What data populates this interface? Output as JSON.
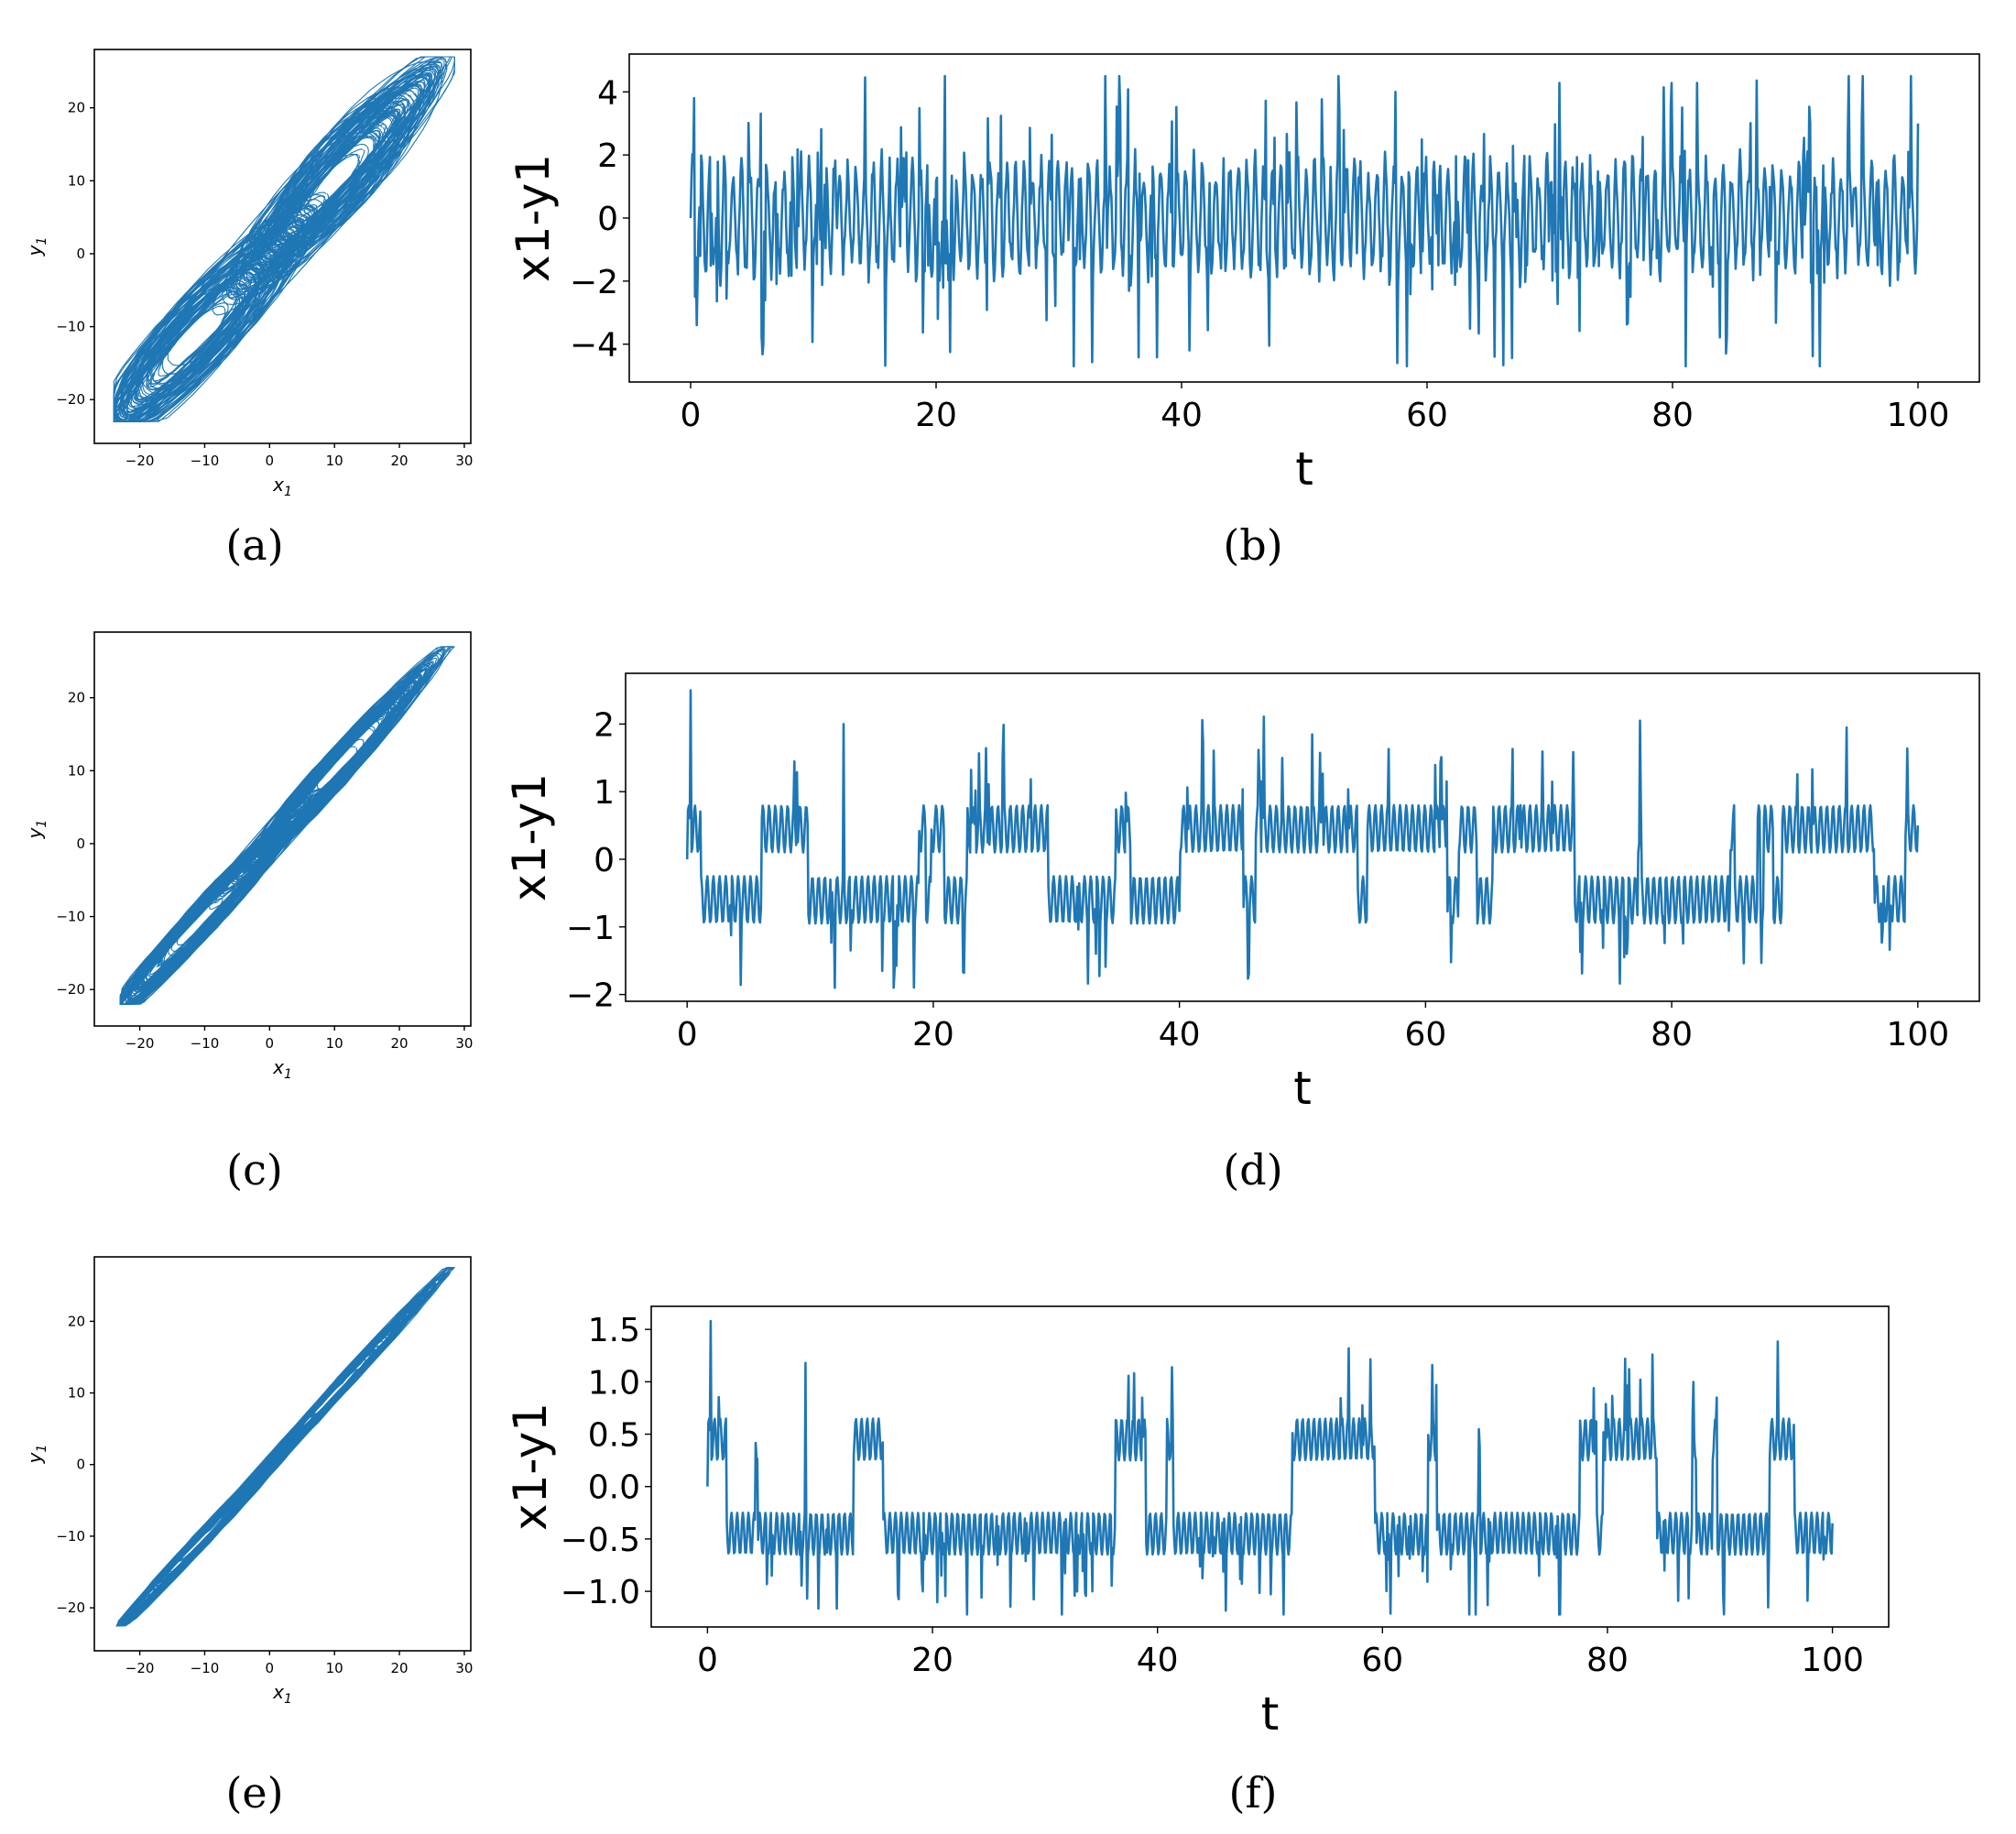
{
  "figure": {
    "line_color": "#1f77b4",
    "captions": [
      "(a)",
      "(b)",
      "(c)",
      "(d)",
      "(e)",
      "(f)"
    ]
  },
  "chart_data": [
    {
      "id": "a",
      "type": "line",
      "caption": "(a)",
      "title": "",
      "xlabel": "x1",
      "xlabel_sub": "1",
      "ylabel": "y1",
      "ylabel_sub": "1",
      "xlim": [
        -27,
        31
      ],
      "ylim": [
        -26,
        28
      ],
      "xticks": [
        -20,
        -10,
        0,
        10,
        20,
        30
      ],
      "xtick_labels": [
        "−20",
        "−10",
        "0",
        "10",
        "20",
        "30"
      ],
      "yticks": [
        -20,
        -10,
        0,
        10,
        20
      ],
      "ytick_labels": [
        "−20",
        "−10",
        "0",
        "10",
        "20"
      ],
      "description": "Phase portrait x1 vs y1, wide double-scroll band along diagonal",
      "band_width": 5.5,
      "extent": {
        "x": [
          -24,
          28.5
        ],
        "y": [
          -23,
          27
        ]
      },
      "grid": false
    },
    {
      "id": "b",
      "type": "line",
      "caption": "(b)",
      "xlabel": "t",
      "ylabel": "x1-y1",
      "xlim": [
        -5,
        105
      ],
      "ylim": [
        -5.2,
        5.2
      ],
      "xticks": [
        0,
        20,
        40,
        60,
        80,
        100
      ],
      "xtick_labels": [
        "0",
        "20",
        "40",
        "60",
        "80",
        "100"
      ],
      "yticks": [
        -4,
        -2,
        0,
        2,
        4
      ],
      "ytick_labels": [
        "−4",
        "−2",
        "0",
        "2",
        "4"
      ],
      "series": [
        {
          "name": "x1-y1",
          "t_range": [
            0,
            100
          ],
          "min": -4.7,
          "max": 4.5,
          "typical_range": [
            -3.5,
            3.8
          ],
          "notable_points": [
            {
              "t": 0.3,
              "v": 3.8
            },
            {
              "t": 0.5,
              "v": -3.4
            },
            {
              "t": 5.9,
              "v": 4.5
            },
            {
              "t": 5.9,
              "v": -4.0
            },
            {
              "t": 31.2,
              "v": 4.2
            },
            {
              "t": 31.2,
              "v": -4.7
            },
            {
              "t": 57.6,
              "v": -4.6
            },
            {
              "t": 57.4,
              "v": 4.0
            },
            {
              "t": 100,
              "v": 3.0
            }
          ]
        }
      ],
      "grid": false
    },
    {
      "id": "c",
      "type": "line",
      "caption": "(c)",
      "xlabel": "x1",
      "xlabel_sub": "1",
      "ylabel": "y1",
      "ylabel_sub": "1",
      "xlim": [
        -27,
        31
      ],
      "ylim": [
        -25,
        29
      ],
      "xticks": [
        -20,
        -10,
        0,
        10,
        20,
        30
      ],
      "xtick_labels": [
        "−20",
        "−10",
        "0",
        "10",
        "20",
        "30"
      ],
      "yticks": [
        -20,
        -10,
        0,
        10,
        20
      ],
      "ytick_labels": [
        "−20",
        "−10",
        "0",
        "10",
        "20"
      ],
      "description": "Phase portrait x1 vs y1, narrower band along diagonal",
      "band_width": 2.5,
      "extent": {
        "x": [
          -23,
          28.5
        ],
        "y": [
          -22,
          27
        ]
      },
      "grid": false
    },
    {
      "id": "d",
      "type": "line",
      "caption": "(d)",
      "xlabel": "t",
      "ylabel": "x1-y1",
      "xlim": [
        -5,
        105
      ],
      "ylim": [
        -2.1,
        2.75
      ],
      "xticks": [
        0,
        20,
        40,
        60,
        80,
        100
      ],
      "xtick_labels": [
        "0",
        "20",
        "40",
        "60",
        "80",
        "100"
      ],
      "yticks": [
        -2,
        -1,
        0,
        1,
        2
      ],
      "ytick_labels": [
        "−2",
        "−1",
        "0",
        "1",
        "2"
      ],
      "series": [
        {
          "name": "x1-y1",
          "t_range": [
            0,
            100
          ],
          "min": -1.9,
          "max": 2.5,
          "typical_range": [
            -1.7,
            1.8
          ],
          "notable_points": [
            {
              "t": 0.3,
              "v": 2.5
            },
            {
              "t": 12.7,
              "v": 2.0
            },
            {
              "t": 16.8,
              "v": -1.9
            },
            {
              "t": 77.4,
              "v": 2.05
            },
            {
              "t": 94.2,
              "v": 1.95
            },
            {
              "t": 100,
              "v": 0.5
            }
          ]
        }
      ],
      "grid": false
    },
    {
      "id": "e",
      "type": "line",
      "caption": "(e)",
      "xlabel": "x1",
      "xlabel_sub": "1",
      "ylabel": "y1",
      "ylabel_sub": "1",
      "xlim": [
        -27,
        31
      ],
      "ylim": [
        -26,
        29
      ],
      "xticks": [
        -20,
        -10,
        0,
        10,
        20,
        30
      ],
      "xtick_labels": [
        "−20",
        "−10",
        "0",
        "10",
        "20",
        "30"
      ],
      "yticks": [
        -20,
        -10,
        0,
        10,
        20
      ],
      "ytick_labels": [
        "−20",
        "−10",
        "0",
        "10",
        "20"
      ],
      "description": "Phase portrait x1 vs y1, nearly a straight diagonal line (near synchronization)",
      "band_width": 1.2,
      "extent": {
        "x": [
          -23.5,
          28.5
        ],
        "y": [
          -22.5,
          27.5
        ]
      },
      "grid": false
    },
    {
      "id": "f",
      "type": "line",
      "caption": "(f)",
      "xlabel": "t",
      "ylabel": "x1-y1",
      "xlim": [
        -5,
        105
      ],
      "ylim": [
        -1.34,
        1.72
      ],
      "xticks": [
        0,
        20,
        40,
        60,
        80,
        100
      ],
      "xtick_labels": [
        "0",
        "20",
        "40",
        "60",
        "80",
        "100"
      ],
      "yticks": [
        -1.0,
        -0.5,
        0.0,
        0.5,
        1.0,
        1.5
      ],
      "ytick_labels": [
        "−1.0",
        "−0.5",
        "0.0",
        "0.5",
        "1.0",
        "1.5"
      ],
      "series": [
        {
          "name": "x1-y1",
          "t_range": [
            0,
            100
          ],
          "min": -1.22,
          "max": 1.58,
          "typical_range": [
            -1.15,
            1.2
          ],
          "notable_points": [
            {
              "t": 0.3,
              "v": 1.58
            },
            {
              "t": 8.7,
              "v": 1.18
            },
            {
              "t": 57.0,
              "v": 1.32
            },
            {
              "t": 31.5,
              "v": -1.22
            },
            {
              "t": 100,
              "v": -0.35
            }
          ]
        }
      ],
      "grid": false
    }
  ]
}
